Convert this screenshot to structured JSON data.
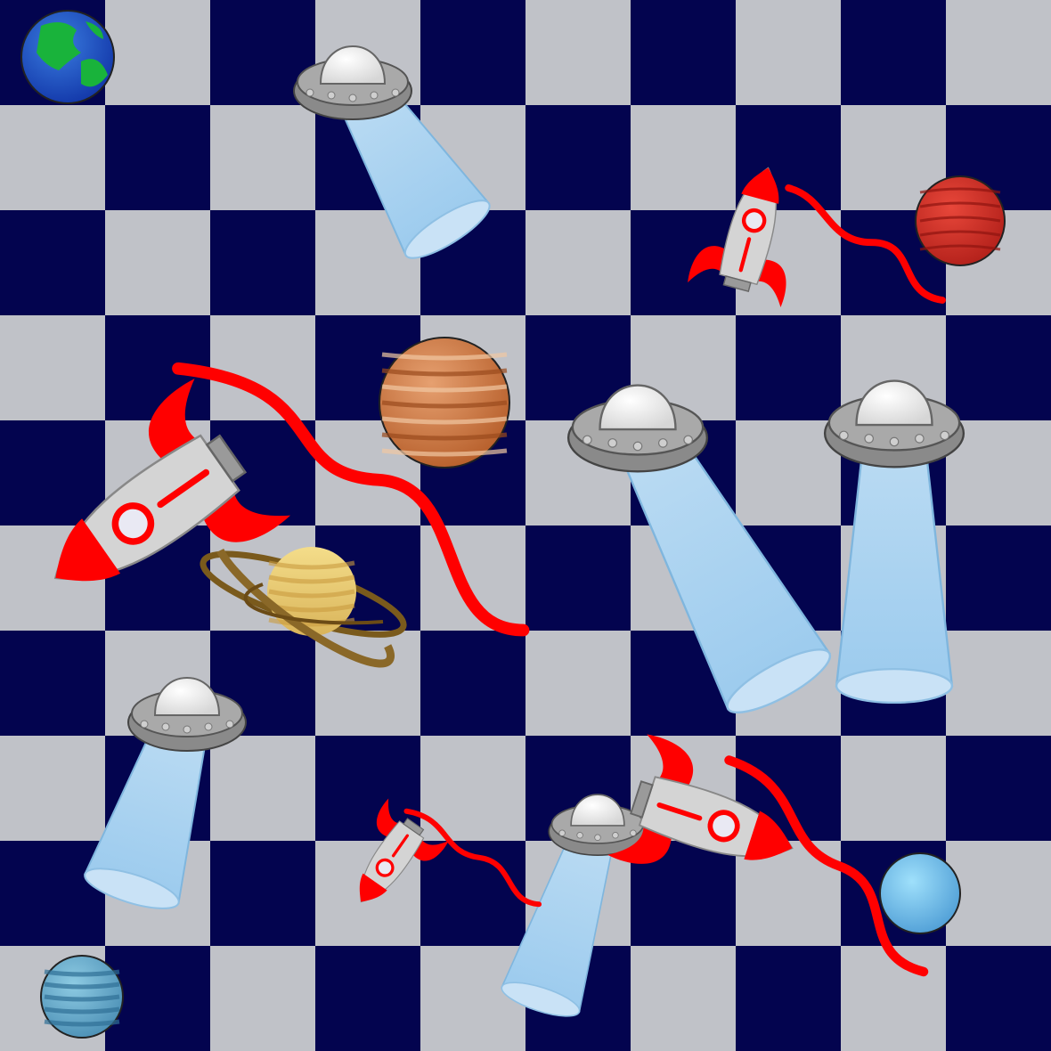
{
  "board": {
    "rows": 10,
    "cols": 10,
    "dark_color": "#03044f",
    "light_color": "#c0c2c8",
    "top_left": "dark"
  },
  "palette": {
    "saucer_body": "#8a8a8a",
    "saucer_rim": "#a9a9a9",
    "saucer_dome": "#f4f4f4",
    "saucer_light": "#cfcfcf",
    "beam": "#9fcdee",
    "rocket_body": "#d4d4d4",
    "rocket_red": "#ff0000",
    "rocket_window": "#e9e9f3"
  },
  "pieces": [
    {
      "name": "earth-planet",
      "kind": "planet",
      "variant": "earth"
    },
    {
      "name": "mars-planet",
      "kind": "planet",
      "variant": "mars"
    },
    {
      "name": "jupiter-planet",
      "kind": "planet",
      "variant": "jupiter"
    },
    {
      "name": "saturn-planet",
      "kind": "planet",
      "variant": "saturn"
    },
    {
      "name": "uranus-planet",
      "kind": "planet",
      "variant": "uranus"
    },
    {
      "name": "neptune-planet",
      "kind": "planet",
      "variant": "neptune"
    },
    {
      "name": "ufo-icon",
      "kind": "ufo"
    },
    {
      "name": "ufo-icon",
      "kind": "ufo"
    },
    {
      "name": "ufo-icon",
      "kind": "ufo"
    },
    {
      "name": "ufo-icon",
      "kind": "ufo"
    },
    {
      "name": "ufo-icon",
      "kind": "ufo"
    },
    {
      "name": "rocket-icon",
      "kind": "rocket"
    },
    {
      "name": "rocket-icon",
      "kind": "rocket"
    },
    {
      "name": "rocket-icon",
      "kind": "rocket"
    },
    {
      "name": "rocket-icon",
      "kind": "rocket"
    }
  ]
}
